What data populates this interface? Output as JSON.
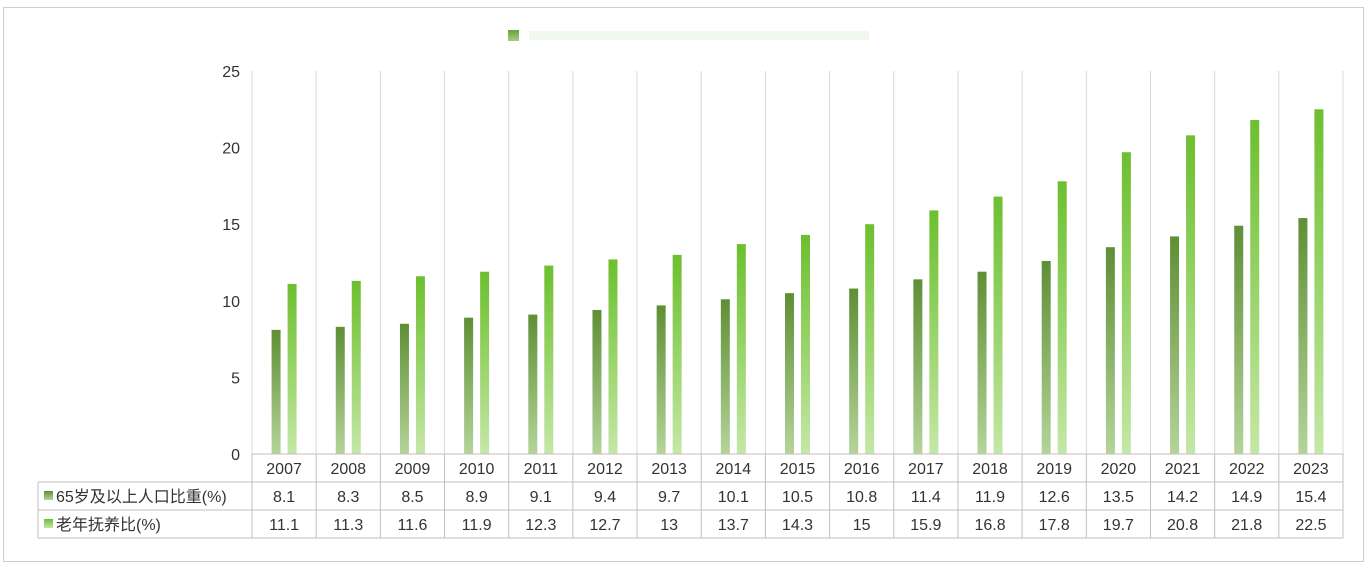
{
  "colors": {
    "series1_top": "#5e8f35",
    "series1_bottom": "#b4d49a",
    "series2_top": "#6cbf2e",
    "series2_bottom": "#c4e8a6",
    "grid": "#d9d9d9",
    "axis": "#bfbfbf"
  },
  "chart_data": {
    "type": "bar",
    "title": "",
    "xlabel": "",
    "ylabel": "",
    "ylim": [
      0,
      25
    ],
    "yticks": [
      "0",
      "5",
      "10",
      "15",
      "20",
      "25"
    ],
    "grid": true,
    "legend": "top (faded) and data-table row headers",
    "categories": [
      "2007",
      "2008",
      "2009",
      "2010",
      "2011",
      "2012",
      "2013",
      "2014",
      "2015",
      "2016",
      "2017",
      "2018",
      "2019",
      "2020",
      "2021",
      "2022",
      "2023"
    ],
    "series": [
      {
        "name": "65岁及以上人口比重(%)",
        "values": [
          8.1,
          8.3,
          8.5,
          8.9,
          9.1,
          9.4,
          9.7,
          10.1,
          10.5,
          10.8,
          11.4,
          11.9,
          12.6,
          13.5,
          14.2,
          14.9,
          15.4
        ],
        "labels": [
          "8.1",
          "8.3",
          "8.5",
          "8.9",
          "9.1",
          "9.4",
          "9.7",
          "10.1",
          "10.5",
          "10.8",
          "11.4",
          "11.9",
          "12.6",
          "13.5",
          "14.2",
          "14.9",
          "15.4"
        ]
      },
      {
        "name": "老年抚养比(%)",
        "values": [
          11.1,
          11.3,
          11.6,
          11.9,
          12.3,
          12.7,
          13,
          13.7,
          14.3,
          15,
          15.9,
          16.8,
          17.8,
          19.7,
          20.8,
          21.8,
          22.5
        ],
        "labels": [
          "11.1",
          "11.3",
          "11.6",
          "11.9",
          "12.3",
          "12.7",
          "13",
          "13.7",
          "14.3",
          "15",
          "15.9",
          "16.8",
          "17.8",
          "19.7",
          "20.8",
          "21.8",
          "22.5"
        ]
      }
    ]
  }
}
